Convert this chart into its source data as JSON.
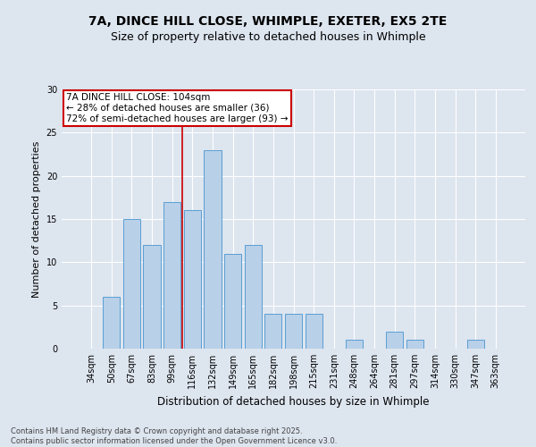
{
  "title1": "7A, DINCE HILL CLOSE, WHIMPLE, EXETER, EX5 2TE",
  "title2": "Size of property relative to detached houses in Whimple",
  "xlabel": "Distribution of detached houses by size in Whimple",
  "ylabel": "Number of detached properties",
  "categories": [
    "34sqm",
    "50sqm",
    "67sqm",
    "83sqm",
    "99sqm",
    "116sqm",
    "132sqm",
    "149sqm",
    "165sqm",
    "182sqm",
    "198sqm",
    "215sqm",
    "231sqm",
    "248sqm",
    "264sqm",
    "281sqm",
    "297sqm",
    "314sqm",
    "330sqm",
    "347sqm",
    "363sqm"
  ],
  "values": [
    0,
    6,
    15,
    12,
    17,
    16,
    23,
    11,
    12,
    4,
    4,
    4,
    0,
    1,
    0,
    2,
    1,
    0,
    0,
    1,
    0
  ],
  "bar_color": "#b8d0e8",
  "bar_edge_color": "#5a9fd4",
  "property_line_color": "#cc0000",
  "annotation_text": "7A DINCE HILL CLOSE: 104sqm\n← 28% of detached houses are smaller (36)\n72% of semi-detached houses are larger (93) →",
  "annotation_box_color": "#cc0000",
  "ylim": [
    0,
    30
  ],
  "yticks": [
    0,
    5,
    10,
    15,
    20,
    25,
    30
  ],
  "fig_bg_color": "#dde5ef",
  "plot_bg_color": "#dde5ef",
  "footer_text": "Contains HM Land Registry data © Crown copyright and database right 2025.\nContains public sector information licensed under the Open Government Licence v3.0.",
  "title_fontsize": 10,
  "subtitle_fontsize": 9,
  "tick_fontsize": 7,
  "ylabel_fontsize": 8,
  "xlabel_fontsize": 8.5,
  "footer_fontsize": 6,
  "annotation_fontsize": 7.5
}
